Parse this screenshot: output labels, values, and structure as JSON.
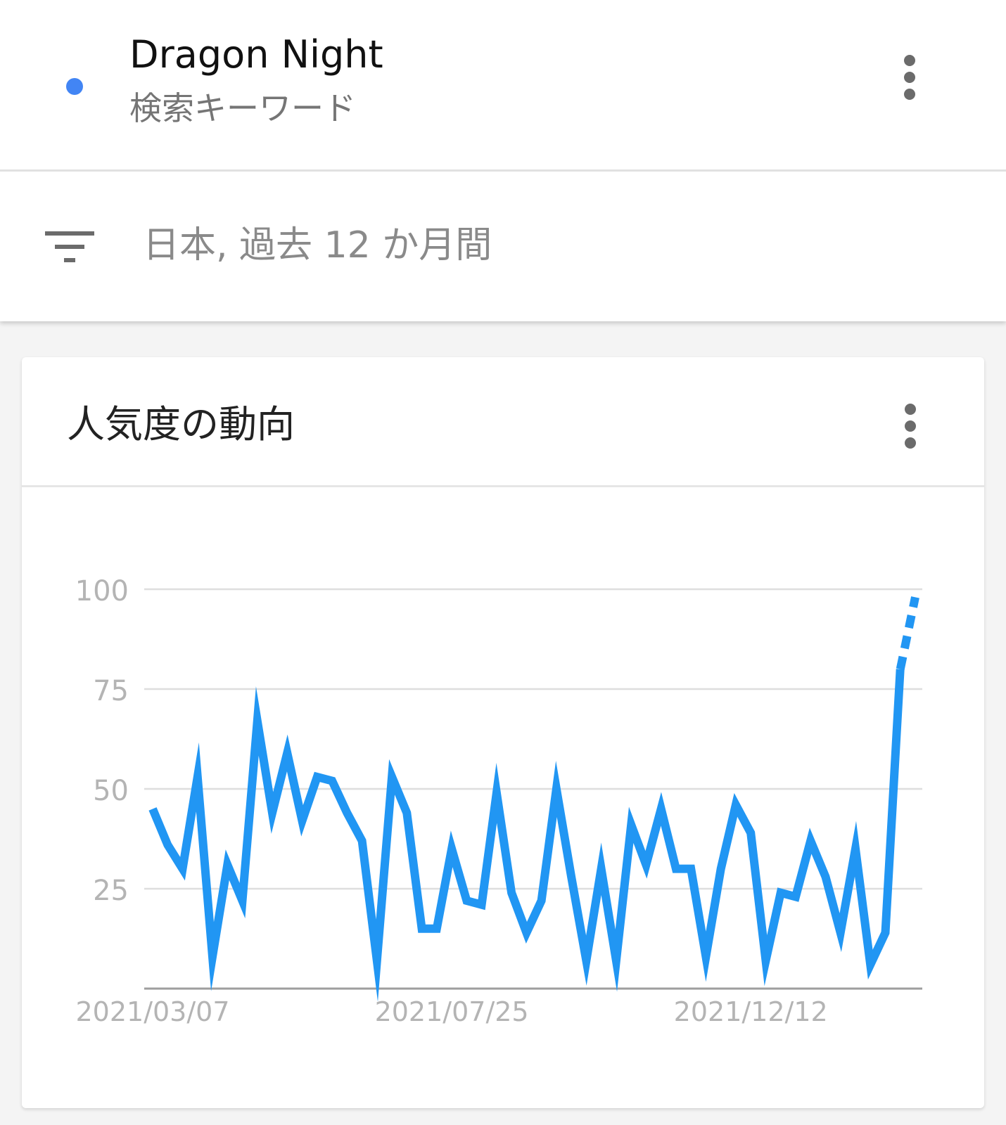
{
  "term": {
    "title": "Dragon Night",
    "subtitle": "検索キーワード",
    "dot_color": "#4285f4",
    "menu_icon": "more-vert-icon"
  },
  "filter": {
    "icon": "filter-list-icon",
    "label": "日本, 過去 12 か月間"
  },
  "card": {
    "title": "人気度の動向",
    "menu_icon": "more-vert-icon"
  },
  "colors": {
    "line": "#2196f3",
    "grid": "#dedede",
    "axis": "#9e9e9e",
    "tick_text": "#b4b4b4"
  },
  "chart_data": {
    "type": "line",
    "y_ticks": [
      25,
      50,
      75,
      100
    ],
    "ylim": [
      0,
      100
    ],
    "x_tick_labels": [
      "2021/03/07",
      "2021/07/25",
      "2021/12/12"
    ],
    "x_tick_indices": [
      0,
      20,
      40
    ],
    "grid": true,
    "dashed_last_segment": true,
    "series": [
      {
        "values": [
          45,
          36,
          30,
          53,
          8,
          31,
          22,
          67,
          44,
          59,
          42,
          53,
          52,
          44,
          37,
          7,
          53,
          44,
          15,
          15,
          35,
          22,
          21,
          49,
          24,
          14,
          22,
          50,
          28,
          7,
          30,
          7,
          41,
          31,
          45,
          30,
          30,
          8,
          30,
          46,
          39,
          7,
          24,
          23,
          37,
          28,
          14,
          35,
          6,
          14,
          80,
          98
        ]
      }
    ]
  }
}
